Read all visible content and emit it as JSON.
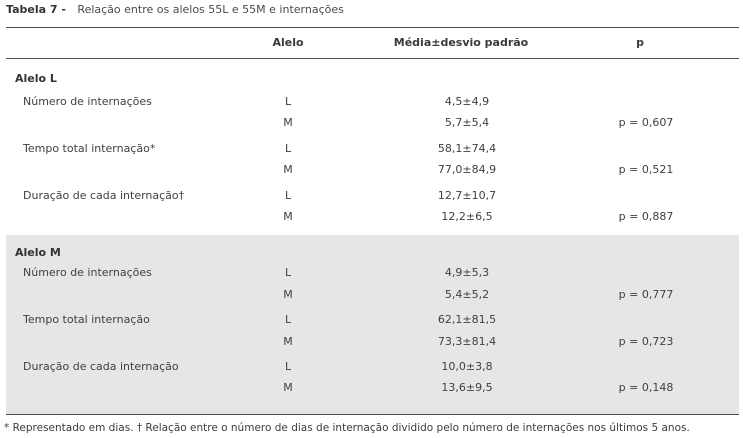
{
  "caption": {
    "label": "Tabela 7 -",
    "text": "Relação entre os alelos 55L e 55M e internações"
  },
  "columns": {
    "alelo": "Alelo",
    "media": "Média±desvio padrão",
    "p": "p"
  },
  "sections": [
    {
      "title": "Alelo L",
      "groups": [
        {
          "variable": "Número de internações",
          "rows": [
            {
              "alelo": "L",
              "media": "4,5±4,9",
              "p": ""
            },
            {
              "alelo": "M",
              "media": "5,7±5,4",
              "p": "p = 0,607"
            }
          ]
        },
        {
          "variable": "Tempo total internação*",
          "rows": [
            {
              "alelo": "L",
              "media": "58,1±74,4",
              "p": ""
            },
            {
              "alelo": "M",
              "media": "77,0±84,9",
              "p": "p = 0,521"
            }
          ]
        },
        {
          "variable": "Duração de cada internação†",
          "rows": [
            {
              "alelo": "L",
              "media": "12,7±10,7",
              "p": ""
            },
            {
              "alelo": "M",
              "media": "12,2±6,5",
              "p": "p = 0,887"
            }
          ]
        }
      ]
    },
    {
      "title": "Alelo M",
      "groups": [
        {
          "variable": "Número de internações",
          "rows": [
            {
              "alelo": "L",
              "media": "4,9±5,3",
              "p": ""
            },
            {
              "alelo": "M",
              "media": "5,4±5,2",
              "p": "p = 0,777"
            }
          ]
        },
        {
          "variable": "Tempo total internação",
          "rows": [
            {
              "alelo": "L",
              "media": "62,1±81,5",
              "p": ""
            },
            {
              "alelo": "M",
              "media": "73,3±81,4",
              "p": "p = 0,723"
            }
          ]
        },
        {
          "variable": "Duração de cada internação",
          "rows": [
            {
              "alelo": "L",
              "media": "10,0±3,8",
              "p": ""
            },
            {
              "alelo": "M",
              "media": "13,6±9,5",
              "p": "p = 0,148"
            }
          ]
        }
      ]
    }
  ],
  "footnote": "* Representado em dias. † Relação entre o número de dias de internação dividido pelo número de internações nos últimos 5 anos."
}
